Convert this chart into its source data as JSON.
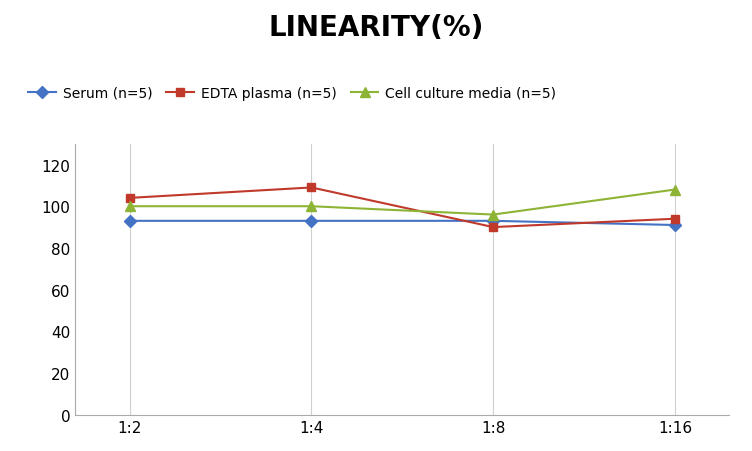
{
  "title": "LINEARITY(%)",
  "x_labels": [
    "1:2",
    "1:4",
    "1:8",
    "1:16"
  ],
  "x_positions": [
    0,
    1,
    2,
    3
  ],
  "series": [
    {
      "label": "Serum (n=5)",
      "values": [
        93,
        93,
        93,
        91
      ],
      "color": "#4472C4",
      "marker": "D",
      "markersize": 6,
      "linewidth": 1.5
    },
    {
      "label": "EDTA plasma (n=5)",
      "values": [
        104,
        109,
        90,
        94
      ],
      "color": "#C0392B",
      "marker": "s",
      "markersize": 6,
      "linewidth": 1.5
    },
    {
      "label": "Cell culture media (n=5)",
      "values": [
        100,
        100,
        96,
        108
      ],
      "color": "#8DB435",
      "marker": "^",
      "markersize": 7,
      "linewidth": 1.5
    }
  ],
  "ylim": [
    0,
    130
  ],
  "yticks": [
    0,
    20,
    40,
    60,
    80,
    100,
    120
  ],
  "grid_color": "#D0D0D0",
  "background_color": "#FFFFFF",
  "title_fontsize": 20,
  "title_fontweight": "bold",
  "legend_fontsize": 10,
  "tick_fontsize": 11
}
